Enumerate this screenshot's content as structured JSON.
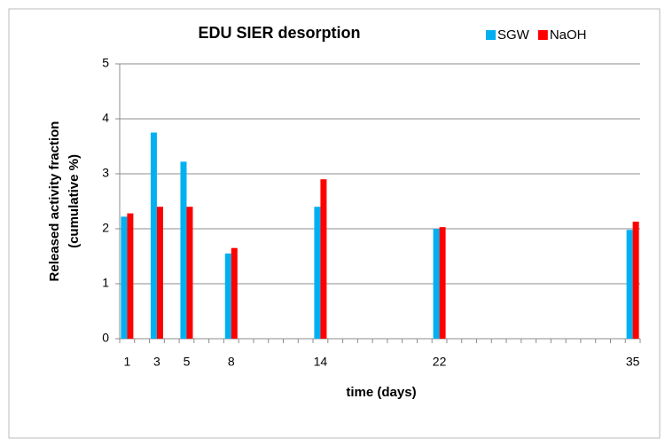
{
  "chart_data": {
    "type": "bar",
    "title": "EDU SIER desorption",
    "xlabel": "time (days)",
    "ylabel": [
      "Released activity fraction",
      "(cumulative %)"
    ],
    "categories": [
      "1",
      null,
      "3",
      null,
      "5",
      null,
      null,
      "8",
      null,
      null,
      null,
      null,
      null,
      "14",
      null,
      null,
      null,
      null,
      null,
      null,
      null,
      "22",
      null,
      null,
      null,
      null,
      null,
      null,
      null,
      null,
      null,
      null,
      null,
      null,
      "35"
    ],
    "series": [
      {
        "name": "SGW",
        "color": "#00b0f0",
        "values": [
          2.22,
          null,
          3.75,
          null,
          3.22,
          null,
          null,
          1.55,
          null,
          null,
          null,
          null,
          null,
          2.4,
          null,
          null,
          null,
          null,
          null,
          null,
          null,
          2.0,
          null,
          null,
          null,
          null,
          null,
          null,
          null,
          null,
          null,
          null,
          null,
          null,
          1.98
        ]
      },
      {
        "name": "NaOH",
        "color": "#ff0000",
        "values": [
          2.28,
          null,
          2.4,
          null,
          2.4,
          null,
          null,
          1.65,
          null,
          null,
          null,
          null,
          null,
          2.9,
          null,
          null,
          null,
          null,
          null,
          null,
          null,
          2.03,
          null,
          null,
          null,
          null,
          null,
          null,
          null,
          null,
          null,
          null,
          null,
          null,
          2.13
        ]
      }
    ],
    "ylim": [
      0,
      5
    ],
    "yticks": [
      0,
      1,
      2,
      3,
      4,
      5
    ],
    "grid": true,
    "legend": "top-right"
  }
}
